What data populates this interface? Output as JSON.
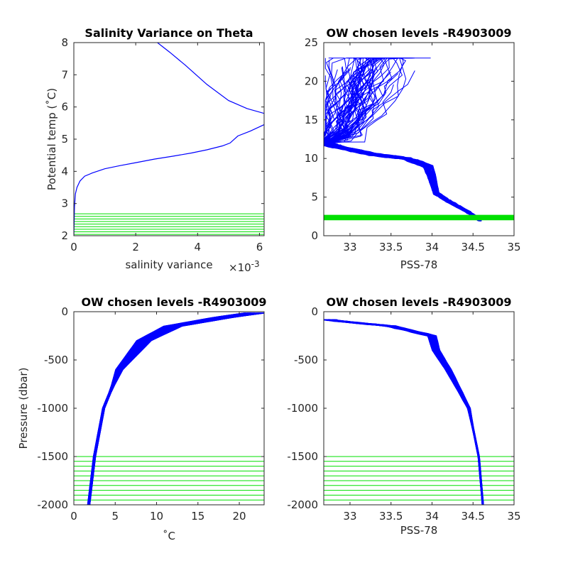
{
  "chart_data": [
    {
      "type": "line",
      "title": "Salinity Variance on Theta",
      "xlabel": "salinity variance",
      "x_exponent_label": "×10",
      "x_exponent_power": "-3",
      "ylabel": "Potential temp (˚C)",
      "xlim": [
        0,
        6.15
      ],
      "ylim": [
        2,
        8
      ],
      "xticks": [
        0,
        2,
        4,
        6
      ],
      "xtick_labels": [
        "0",
        "2",
        "4",
        "6"
      ],
      "yticks": [
        2,
        3,
        4,
        5,
        6,
        7,
        8
      ],
      "ytick_labels": [
        "2",
        "3",
        "4",
        "5",
        "6",
        "7",
        "8"
      ],
      "series": [
        {
          "color": "#0000ff",
          "x": [
            0.0,
            0.02,
            0.05,
            0.1,
            0.2,
            0.35,
            0.6,
            1.0,
            1.5,
            2.0,
            2.6,
            3.2,
            3.8,
            4.3,
            4.8,
            5.05,
            5.3,
            5.7,
            6.15
          ],
          "y": [
            2.0,
            2.9,
            3.3,
            3.5,
            3.7,
            3.85,
            3.95,
            4.08,
            4.18,
            4.27,
            4.38,
            4.47,
            4.57,
            4.67,
            4.79,
            4.88,
            5.1,
            5.25,
            5.45
          ]
        },
        {
          "color": "#0000ff",
          "x": [
            6.15,
            5.6,
            5.0,
            4.3,
            3.6,
            3.1,
            2.7
          ],
          "y": [
            5.8,
            5.95,
            6.2,
            6.7,
            7.3,
            7.7,
            8.0
          ]
        }
      ],
      "chosen_levels_color": "#00e000",
      "chosen_levels": [
        2.04,
        2.12,
        2.2,
        2.28,
        2.36,
        2.44,
        2.52,
        2.6,
        2.68
      ]
    },
    {
      "type": "line",
      "title": "OW chosen levels -R4903009",
      "xlabel": "PSS-78",
      "ylabel": "",
      "xlim": [
        32.68,
        35
      ],
      "ylim": [
        0,
        25
      ],
      "xticks": [
        33,
        33.5,
        34,
        34.5,
        35
      ],
      "xtick_labels": [
        "33",
        "33.5",
        "34",
        "34.5",
        "35"
      ],
      "yticks": [
        0,
        5,
        10,
        15,
        20,
        25
      ],
      "ytick_labels": [
        "0",
        "5",
        "10",
        "15",
        "20",
        "25"
      ],
      "profile_color": "#0000ff",
      "chosen_band": {
        "color": "#00e000",
        "y_range": [
          2.0,
          2.7
        ]
      },
      "profile_envelope": [
        {
          "x": 34.58,
          "y": 2.0
        },
        {
          "x": 34.45,
          "y": 3.0
        },
        {
          "x": 34.2,
          "y": 4.5
        },
        {
          "x": 34.05,
          "y": 5.5
        },
        {
          "x": 34.0,
          "y": 7.5
        },
        {
          "x": 33.95,
          "y": 9.0
        },
        {
          "x": 33.7,
          "y": 10.0
        },
        {
          "x": 33.3,
          "y": 10.5
        },
        {
          "x": 32.85,
          "y": 11.5
        },
        {
          "x": 32.68,
          "y": 12.0
        }
      ]
    },
    {
      "type": "line",
      "title": "OW chosen levels -R4903009",
      "xlabel": "˚C",
      "ylabel": "Pressure (dbar)",
      "xlim": [
        0,
        23
      ],
      "ylim": [
        -2000,
        0
      ],
      "xticks": [
        0,
        5,
        10,
        15,
        20
      ],
      "xtick_labels": [
        "0",
        "5",
        "10",
        "15",
        "20"
      ],
      "yticks": [
        -2000,
        -1500,
        -1000,
        -500,
        0
      ],
      "ytick_labels": [
        "-2000",
        "-1500",
        "-1000",
        "-500",
        "0"
      ],
      "profile_color": "#0000ff",
      "chosen_levels_color": "#00e000",
      "chosen_levels": [
        -1500,
        -1550,
        -1600,
        -1650,
        -1700,
        -1750,
        -1800,
        -1850,
        -1900,
        -1950,
        -2000
      ],
      "profile_envelope": [
        {
          "x": 1.8,
          "y": -2000
        },
        {
          "x": 2.5,
          "y": -1500
        },
        {
          "x": 3.6,
          "y": -1000
        },
        {
          "x": 5.5,
          "y": -600
        },
        {
          "x": 8.5,
          "y": -300
        },
        {
          "x": 12.0,
          "y": -150
        },
        {
          "x": 18.0,
          "y": -60
        },
        {
          "x": 23.0,
          "y": 0
        }
      ]
    },
    {
      "type": "line",
      "title": "OW chosen levels -R4903009",
      "xlabel": "PSS-78",
      "ylabel": "",
      "xlim": [
        32.68,
        35
      ],
      "ylim": [
        -2000,
        0
      ],
      "xticks": [
        33,
        33.5,
        34,
        34.5,
        35
      ],
      "xtick_labels": [
        "33",
        "33.5",
        "34",
        "34.5",
        "35"
      ],
      "yticks": [
        -2000,
        -1500,
        -1000,
        -500,
        0
      ],
      "ytick_labels": [
        "-2000",
        "-1500",
        "-1000",
        "-500",
        "0"
      ],
      "profile_color": "#0000ff",
      "chosen_levels_color": "#00e000",
      "chosen_levels": [
        -1500,
        -1550,
        -1600,
        -1650,
        -1700,
        -1750,
        -1800,
        -1850,
        -1900,
        -1950,
        -2000
      ],
      "profile_envelope": [
        {
          "x": 34.62,
          "y": -2000
        },
        {
          "x": 34.57,
          "y": -1500
        },
        {
          "x": 34.45,
          "y": -1000
        },
        {
          "x": 34.2,
          "y": -600
        },
        {
          "x": 34.05,
          "y": -400
        },
        {
          "x": 34.0,
          "y": -250
        },
        {
          "x": 33.5,
          "y": -150
        },
        {
          "x": 32.9,
          "y": -100
        },
        {
          "x": 32.7,
          "y": -80
        }
      ]
    }
  ]
}
